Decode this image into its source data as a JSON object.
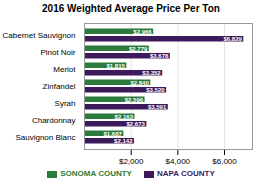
{
  "chart_data": {
    "type": "bar",
    "orientation": "horizontal",
    "title": "2016 Weighted Average Price Per Ton",
    "categories": [
      "Cabernet Sauvignon",
      "Pinot Noir",
      "Merlot",
      "Zinfandel",
      "Syrah",
      "Chardonnay",
      "Sauvignon Blanc"
    ],
    "series": [
      {
        "name": "SONOMA COUNTY",
        "color": "#2a7b3c",
        "values": [
          2966,
          2779,
          1815,
          2840,
          2596,
          2163,
          1687
        ],
        "value_labels": [
          "$2,966",
          "$2,779",
          "$1,815",
          "$2,840",
          "$2,596",
          "$2,163",
          "$1,687"
        ]
      },
      {
        "name": "NAPA COUNTY",
        "color": "#3d1a5c",
        "values": [
          6829,
          3678,
          3352,
          3520,
          3591,
          2673,
          2142
        ],
        "value_labels": [
          "$6,829",
          "$3,678",
          "$3,352",
          "$3,520",
          "$3,591",
          "$2,673",
          "$2,142"
        ]
      }
    ],
    "xlim": [
      0,
      7200
    ],
    "xticks": [
      {
        "value": 2000,
        "label": "$2,000"
      },
      {
        "value": 4000,
        "label": "$4,000"
      },
      {
        "value": 6000,
        "label": "$6,000"
      }
    ],
    "grid": true,
    "data_labels": true,
    "legend": "bottom"
  }
}
